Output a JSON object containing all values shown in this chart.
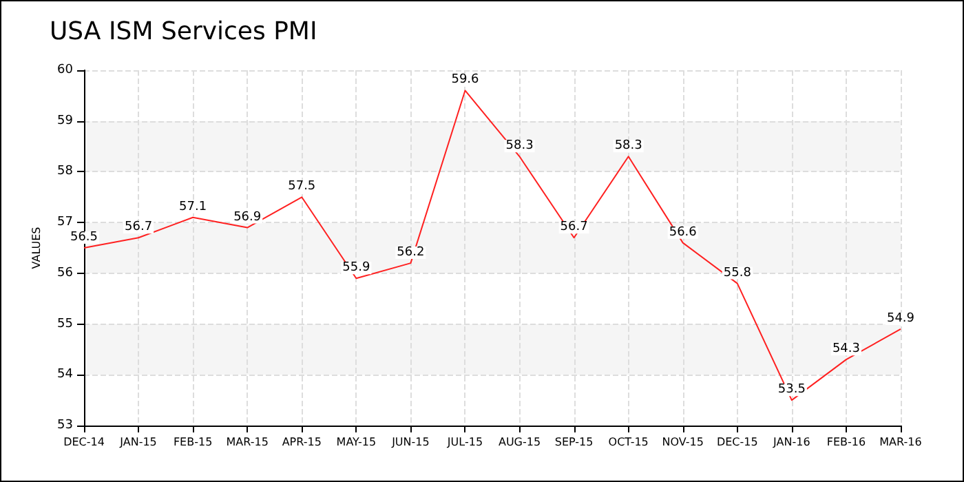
{
  "chart_data": {
    "type": "line",
    "title": "USA ISM Services PMI",
    "ylabel": "VALUES",
    "categories": [
      "DEC-14",
      "JAN-15",
      "FEB-15",
      "MAR-15",
      "APR-15",
      "MAY-15",
      "JUN-15",
      "JUL-15",
      "AUG-15",
      "SEP-15",
      "OCT-15",
      "NOV-15",
      "DEC-15",
      "JAN-16",
      "FEB-16",
      "MAR-16"
    ],
    "series": [
      {
        "color": "#ff2020",
        "values": [
          56.5,
          56.7,
          57.1,
          56.9,
          57.5,
          55.9,
          56.2,
          59.6,
          58.3,
          56.7,
          58.3,
          56.6,
          55.8,
          53.5,
          54.3,
          54.9
        ]
      }
    ],
    "ylim": [
      53,
      60
    ],
    "yticks": [
      53,
      54,
      55,
      56,
      57,
      58,
      59,
      60
    ],
    "grid": true,
    "marker": "none",
    "line_style": "solid",
    "data_labels": true
  }
}
